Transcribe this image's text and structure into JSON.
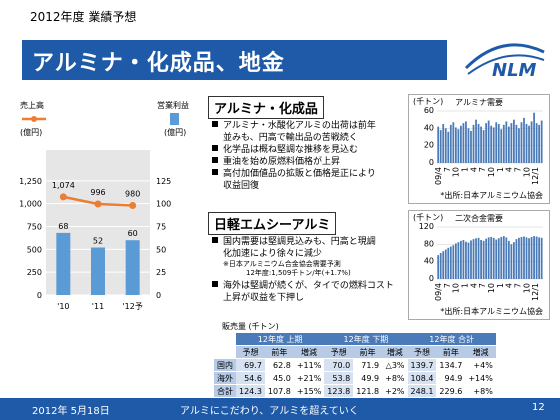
{
  "header": {
    "year_title": "2012年度 業績予想"
  },
  "title": {
    "text": "アルミナ・化成品、地金"
  },
  "logo": {
    "text": "NLM"
  },
  "colors": {
    "accent": "#1e5aa8",
    "bar": "#5b9bd5",
    "line": "#ed7d31"
  },
  "main_chart": {
    "left_legend": "売上高",
    "right_legend": "営業利益",
    "left_unit": "(億円)",
    "right_unit": "(億円)"
  },
  "chart_data": [
    {
      "type": "bar",
      "categories": [
        "'10",
        "'11",
        "'12予"
      ],
      "series": [
        {
          "name": "営業利益",
          "axis": "right",
          "values": [
            68,
            52,
            60
          ]
        },
        {
          "name": "売上高",
          "axis": "left",
          "type": "line",
          "values": [
            1074,
            996,
            980
          ]
        }
      ],
      "left_ylim": [
        0,
        1500
      ],
      "left_ticks": [
        "0",
        "250",
        "500",
        "750",
        "1,000",
        "1,250"
      ],
      "right_ylim": [
        0,
        150
      ],
      "right_ticks": [
        "0",
        "25",
        "50",
        "75",
        "100",
        "125"
      ],
      "value_labels": [
        "1,074",
        "996",
        "980"
      ],
      "grid": true
    },
    {
      "type": "bar",
      "title": "アルミナ需要",
      "ylabel": "(千トン)",
      "yticks": [
        "0",
        "20",
        "40",
        "60"
      ],
      "ylim": [
        0,
        60
      ],
      "xticks": [
        "09/4",
        "7",
        "10",
        "1",
        "4",
        "7",
        "10",
        "1",
        "4",
        "7",
        "10",
        "12/1"
      ],
      "values": [
        42,
        38,
        45,
        40,
        36,
        44,
        47,
        41,
        39,
        43,
        46,
        48,
        40,
        37,
        44,
        50,
        45,
        42,
        38,
        46,
        49,
        43,
        41,
        47,
        45,
        39,
        44,
        48,
        42,
        46,
        50,
        44,
        40,
        47,
        52,
        45,
        43,
        48,
        58,
        46,
        44,
        49
      ],
      "source": "*出所:日本アルミニウム協会"
    },
    {
      "type": "bar",
      "title": "二次合金需要",
      "ylabel": "(千トン)",
      "yticks": [
        "0",
        "40",
        "80",
        "120"
      ],
      "ylim": [
        0,
        120
      ],
      "xticks": [
        "09/4",
        "7",
        "10",
        "1",
        "4",
        "7",
        "10",
        "1",
        "4",
        "7",
        "10",
        "12/1"
      ],
      "values": [
        55,
        60,
        64,
        68,
        72,
        75,
        78,
        82,
        85,
        88,
        90,
        86,
        84,
        89,
        92,
        94,
        95,
        90,
        88,
        93,
        96,
        97,
        95,
        91,
        94,
        97,
        99,
        96,
        88,
        80,
        85,
        92,
        95,
        97,
        98,
        96,
        94,
        97,
        99,
        98,
        96,
        95
      ],
      "source": "*出所:日本アルミニウム協会"
    }
  ],
  "section1": {
    "title": "アルミナ・化成品",
    "bullets": [
      [
        "アルミナ・水酸化アルミの出荷は前年",
        "並みも、円高で輸出品の苦戦続く"
      ],
      [
        "化学品は概ね堅調な推移を見込む"
      ],
      [
        "重油を始め原燃料価格が上昇"
      ],
      [
        "高付加価値品の拡販と価格是正により",
        "収益回復"
      ]
    ]
  },
  "section2": {
    "title": "日軽エムシーアルミ",
    "bullets": [
      [
        "国内需要は堅調見込みも、円高と現調",
        "化加速により徐々に減少"
      ],
      [
        "海外は堅調が続くが、タイでの燃料コスト",
        "上昇が収益を下押し"
      ]
    ],
    "note1": "※日本アルミニウム合金協会需要予測",
    "note2": "12年度:1,509千トン/年(+1.7%)"
  },
  "table": {
    "caption": "販売量 (千トン)",
    "groups": [
      "12年度 上期",
      "12年度 下期",
      "12年度 合計"
    ],
    "subheads": [
      "予想",
      "前年",
      "増減"
    ],
    "rows": [
      {
        "label": "国内",
        "cells": [
          "69.7",
          "62.8",
          "+11%",
          "70.0",
          "71.9",
          "△3%",
          "139.7",
          "134.7",
          "+4%"
        ]
      },
      {
        "label": "海外",
        "cells": [
          "54.6",
          "45.0",
          "+21%",
          "53.8",
          "49.9",
          "+8%",
          "108.4",
          "94.9",
          "+14%"
        ]
      },
      {
        "label": "合計",
        "cells": [
          "124.3",
          "107.8",
          "+15%",
          "123.8",
          "121.8",
          "+2%",
          "248.1",
          "229.6",
          "+8%"
        ]
      }
    ]
  },
  "footer": {
    "date": "2012年 5月18日",
    "tagline": "アルミにこだわり、アルミを超えていく",
    "page": "12"
  }
}
